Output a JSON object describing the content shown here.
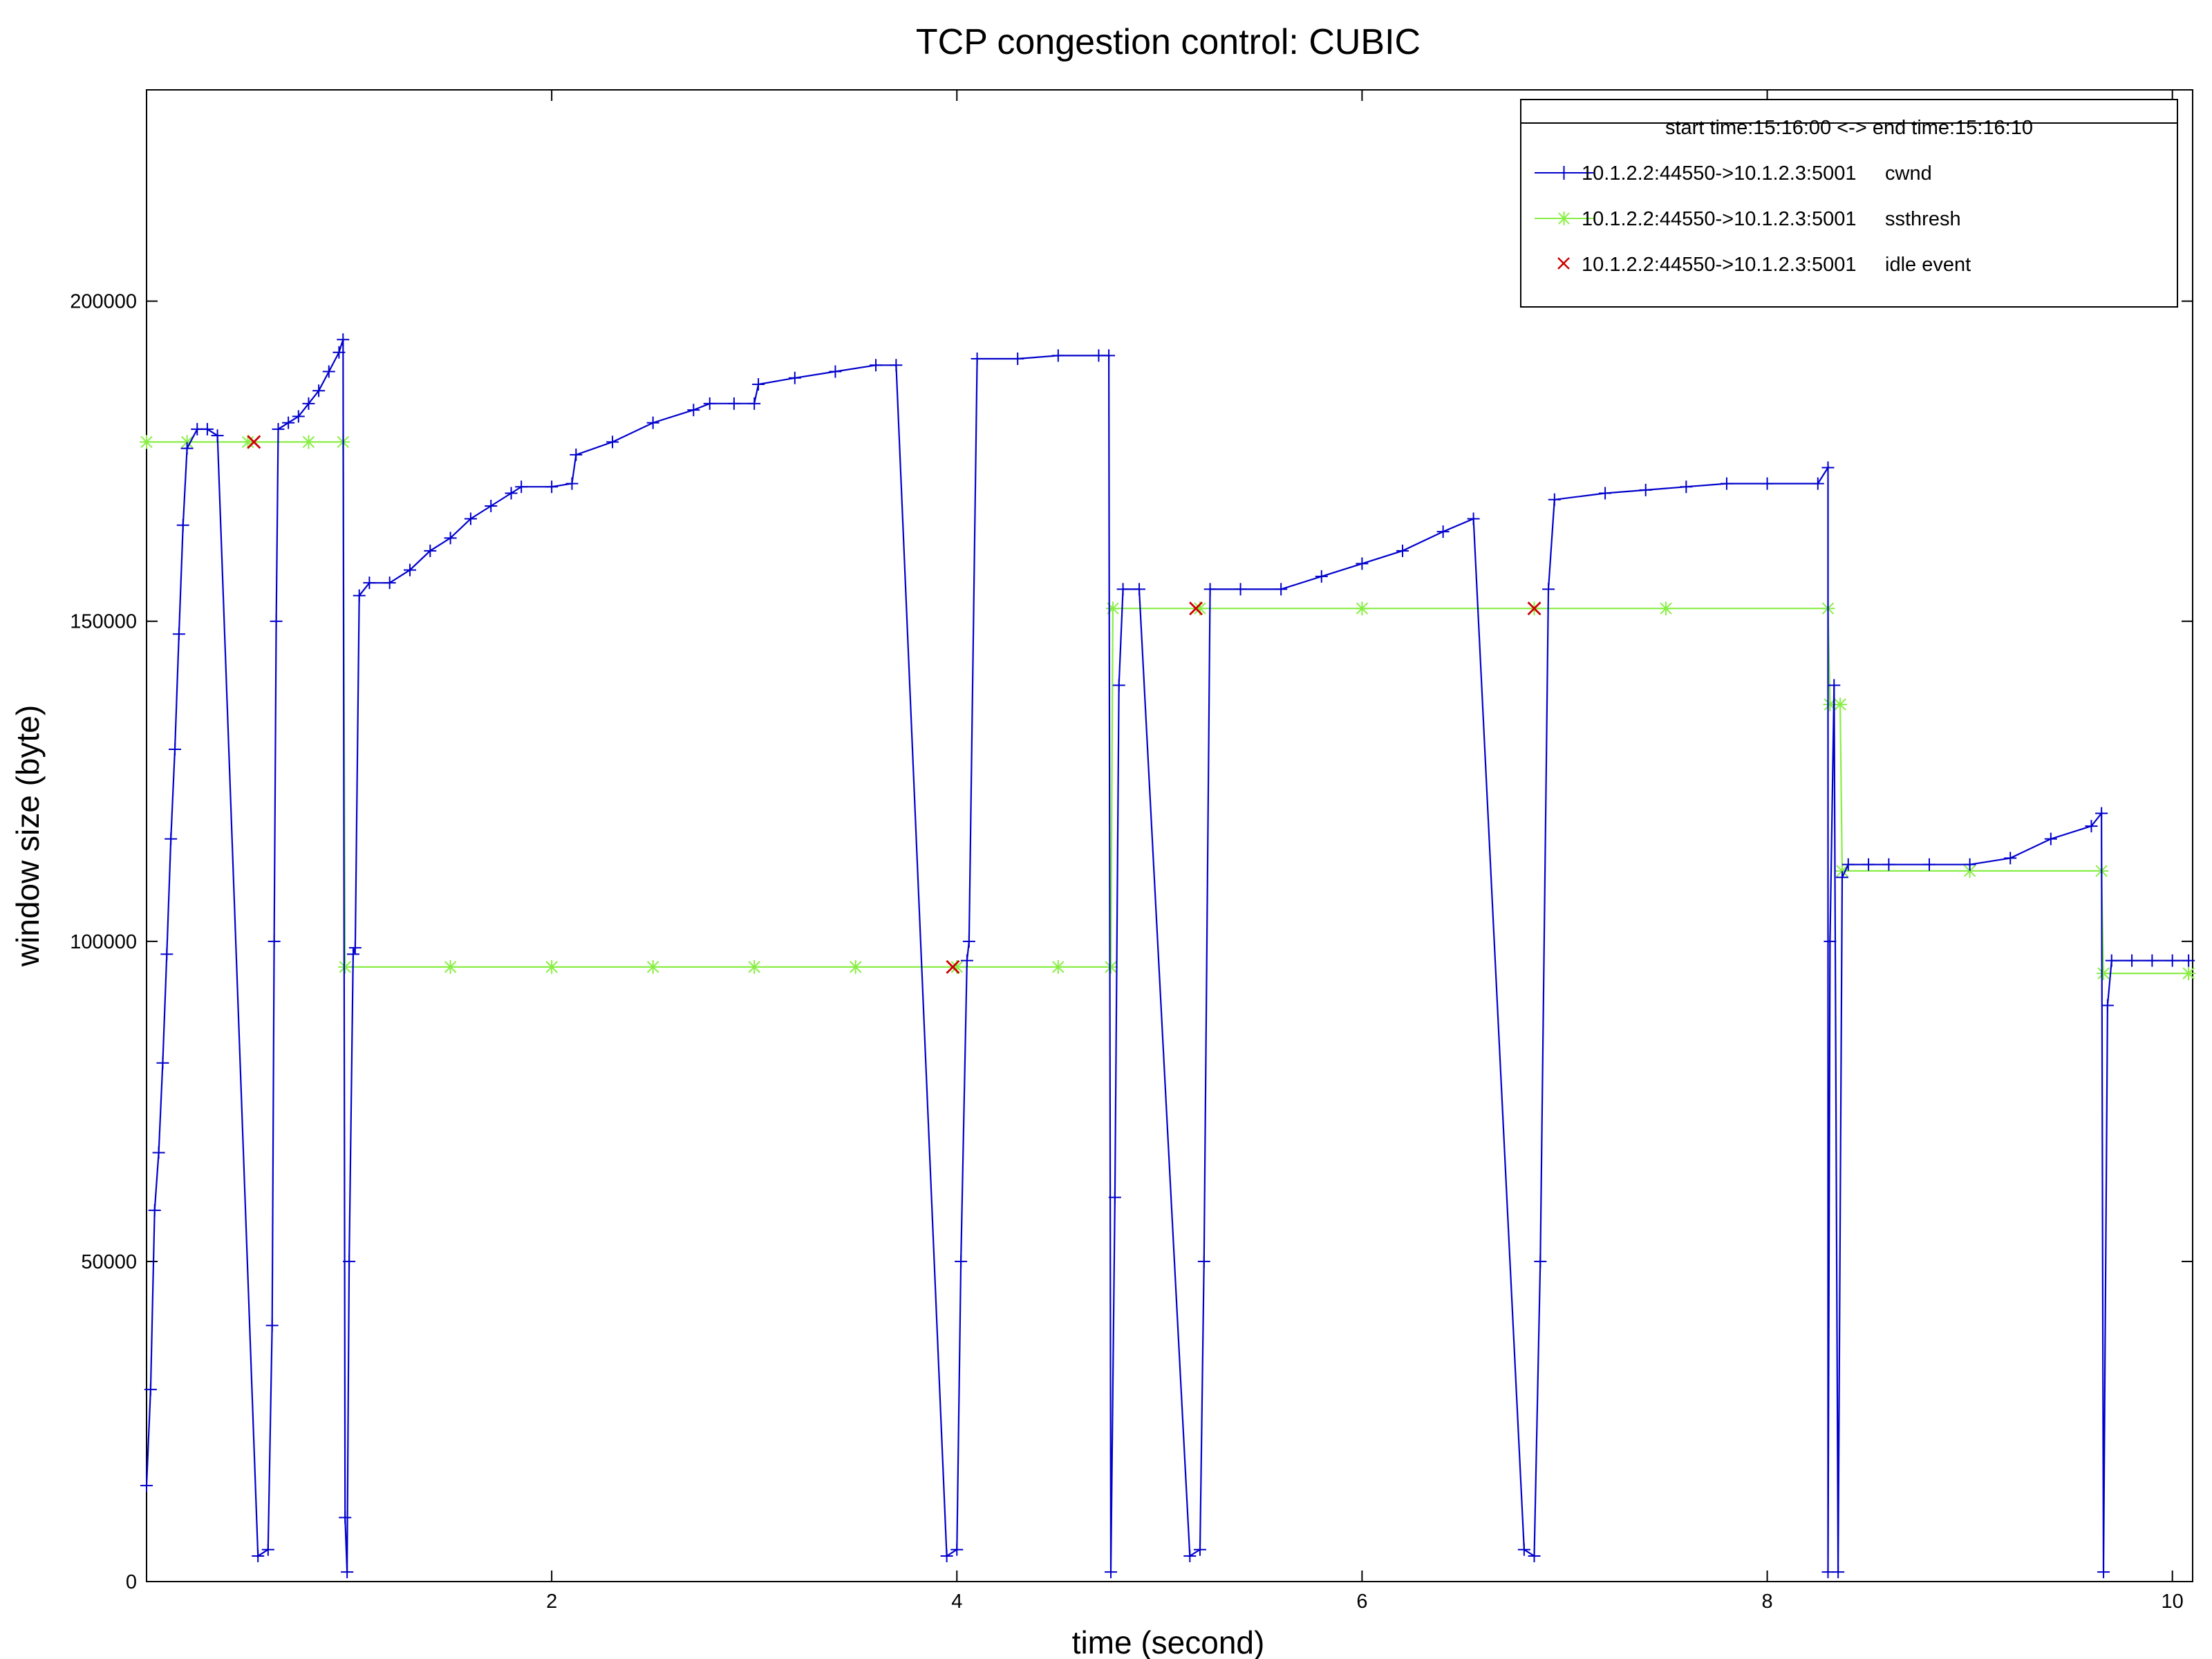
{
  "chart_data": {
    "type": "line",
    "title": "TCP congestion control: CUBIC",
    "xlabel": "time (second)",
    "ylabel": "window size (byte)",
    "xlim": [
      0,
      10.1
    ],
    "ylim": [
      0,
      233000
    ],
    "x_ticks": [
      2,
      4,
      6,
      8,
      10
    ],
    "y_ticks": [
      0,
      50000,
      100000,
      150000,
      200000
    ],
    "grid": false,
    "legend": {
      "placement": "top-right",
      "header": "start time:15:16:00 <-> end time:15:16:10",
      "entries": [
        {
          "flow": "10.1.2.2:44550->10.1.2.3:5001",
          "label": "cwnd"
        },
        {
          "flow": "10.1.2.2:44550->10.1.2.3:5001",
          "label": "ssthresh"
        },
        {
          "flow": "10.1.2.2:44550->10.1.2.3:5001",
          "label": "idle event"
        }
      ]
    },
    "series": [
      {
        "name": "cwnd",
        "color": "#0000cc",
        "marker": "plus",
        "points": [
          [
            0.0,
            15000
          ],
          [
            0.02,
            30000
          ],
          [
            0.04,
            58000
          ],
          [
            0.06,
            67000
          ],
          [
            0.08,
            81000
          ],
          [
            0.1,
            98000
          ],
          [
            0.12,
            116000
          ],
          [
            0.14,
            130000
          ],
          [
            0.16,
            148000
          ],
          [
            0.18,
            165000
          ],
          [
            0.2,
            177000
          ],
          [
            0.25,
            180000
          ],
          [
            0.3,
            180000
          ],
          [
            0.35,
            179000
          ],
          [
            0.55,
            4000
          ],
          [
            0.6,
            5000
          ],
          [
            0.62,
            40000
          ],
          [
            0.63,
            100000
          ],
          [
            0.64,
            150000
          ],
          [
            0.65,
            180000
          ],
          [
            0.7,
            181000
          ],
          [
            0.75,
            182000
          ],
          [
            0.8,
            184000
          ],
          [
            0.85,
            186000
          ],
          [
            0.9,
            189000
          ],
          [
            0.95,
            192000
          ],
          [
            0.97,
            194000
          ],
          [
            0.98,
            10000
          ],
          [
            0.99,
            1500
          ],
          [
            1.0,
            50000
          ],
          [
            1.02,
            98000
          ],
          [
            1.03,
            99000
          ],
          [
            1.05,
            154000
          ],
          [
            1.1,
            156000
          ],
          [
            1.2,
            156000
          ],
          [
            1.3,
            158000
          ],
          [
            1.4,
            161000
          ],
          [
            1.5,
            163000
          ],
          [
            1.6,
            166000
          ],
          [
            1.7,
            168000
          ],
          [
            1.8,
            170000
          ],
          [
            1.85,
            171000
          ],
          [
            2.0,
            171000
          ],
          [
            2.1,
            171500
          ],
          [
            2.12,
            176000
          ],
          [
            2.3,
            178000
          ],
          [
            2.5,
            181000
          ],
          [
            2.7,
            183000
          ],
          [
            2.78,
            184000
          ],
          [
            2.9,
            184000
          ],
          [
            3.0,
            184000
          ],
          [
            3.02,
            187000
          ],
          [
            3.2,
            188000
          ],
          [
            3.4,
            189000
          ],
          [
            3.6,
            190000
          ],
          [
            3.7,
            190000
          ],
          [
            3.95,
            4000
          ],
          [
            4.0,
            5000
          ],
          [
            4.02,
            50000
          ],
          [
            4.05,
            97000
          ],
          [
            4.06,
            100000
          ],
          [
            4.1,
            191000
          ],
          [
            4.3,
            191000
          ],
          [
            4.5,
            191500
          ],
          [
            4.7,
            191500
          ],
          [
            4.75,
            191500
          ],
          [
            4.76,
            1500
          ],
          [
            4.78,
            60000
          ],
          [
            4.8,
            140000
          ],
          [
            4.82,
            155000
          ],
          [
            4.9,
            155000
          ],
          [
            5.15,
            4000
          ],
          [
            5.2,
            5000
          ],
          [
            5.22,
            50000
          ],
          [
            5.25,
            155000
          ],
          [
            5.4,
            155000
          ],
          [
            5.6,
            155000
          ],
          [
            5.8,
            157000
          ],
          [
            6.0,
            159000
          ],
          [
            6.2,
            161000
          ],
          [
            6.4,
            164000
          ],
          [
            6.55,
            166000
          ],
          [
            6.8,
            5000
          ],
          [
            6.85,
            4000
          ],
          [
            6.88,
            50000
          ],
          [
            6.92,
            155000
          ],
          [
            6.95,
            169000
          ],
          [
            7.2,
            170000
          ],
          [
            7.4,
            170500
          ],
          [
            7.6,
            171000
          ],
          [
            7.8,
            171500
          ],
          [
            8.0,
            171500
          ],
          [
            8.25,
            171500
          ],
          [
            8.3,
            174000
          ],
          [
            8.3,
            1500
          ],
          [
            8.31,
            100000
          ],
          [
            8.33,
            140000
          ],
          [
            8.35,
            1500
          ],
          [
            8.37,
            110000
          ],
          [
            8.4,
            112000
          ],
          [
            8.5,
            112000
          ],
          [
            8.6,
            112000
          ],
          [
            8.8,
            112000
          ],
          [
            9.0,
            112000
          ],
          [
            9.2,
            113000
          ],
          [
            9.4,
            116000
          ],
          [
            9.6,
            118000
          ],
          [
            9.65,
            120000
          ],
          [
            9.66,
            1500
          ],
          [
            9.68,
            90000
          ],
          [
            9.7,
            97000
          ],
          [
            9.8,
            97000
          ],
          [
            9.9,
            97000
          ],
          [
            10.0,
            97000
          ],
          [
            10.08,
            97000
          ]
        ]
      },
      {
        "name": "ssthresh",
        "color": "#88ee44",
        "marker": "cross",
        "points": [
          [
            0.0,
            178000
          ],
          [
            0.2,
            178000
          ],
          [
            0.5,
            178000
          ],
          [
            0.8,
            178000
          ],
          [
            0.97,
            178000
          ],
          [
            0.98,
            96000
          ],
          [
            1.5,
            96000
          ],
          [
            2.0,
            96000
          ],
          [
            2.5,
            96000
          ],
          [
            3.0,
            96000
          ],
          [
            3.5,
            96000
          ],
          [
            4.0,
            96000
          ],
          [
            4.5,
            96000
          ],
          [
            4.76,
            96000
          ],
          [
            4.77,
            152000
          ],
          [
            5.2,
            152000
          ],
          [
            6.0,
            152000
          ],
          [
            6.85,
            152000
          ],
          [
            7.5,
            152000
          ],
          [
            8.3,
            152000
          ],
          [
            8.31,
            137000
          ],
          [
            8.36,
            137000
          ],
          [
            8.37,
            111000
          ],
          [
            9.0,
            111000
          ],
          [
            9.65,
            111000
          ],
          [
            9.66,
            95000
          ],
          [
            10.08,
            95000
          ]
        ]
      },
      {
        "name": "idle event",
        "color": "#cc0000",
        "marker": "x",
        "points": [
          [
            0.53,
            178000
          ],
          [
            3.98,
            96000
          ],
          [
            5.18,
            152000
          ],
          [
            6.85,
            152000
          ]
        ]
      }
    ]
  }
}
